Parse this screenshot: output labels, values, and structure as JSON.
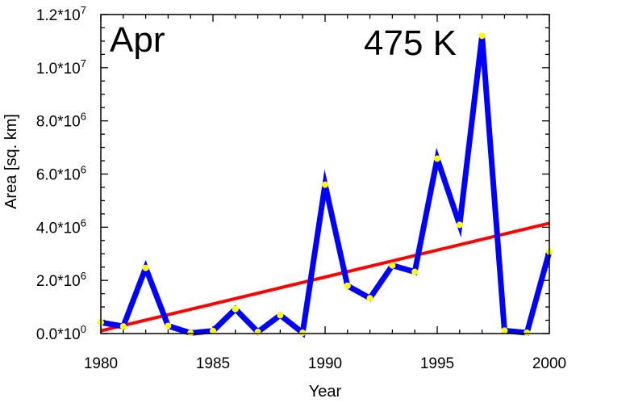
{
  "chart_data": {
    "type": "line",
    "panel_label": "Apr",
    "level_label": "475 K",
    "xlabel": "Year",
    "ylabel": "Area [sq. km]",
    "xlim": [
      1980,
      2000
    ],
    "ylim": [
      0,
      12000000
    ],
    "x_ticks": [
      "1980",
      "1985",
      "1990",
      "1995",
      "2000"
    ],
    "y_ticks": [
      {
        "mantissa": "0.0*10",
        "exp": "0"
      },
      {
        "mantissa": "2.0*10",
        "exp": "6"
      },
      {
        "mantissa": "4.0*10",
        "exp": "6"
      },
      {
        "mantissa": "6.0*10",
        "exp": "6"
      },
      {
        "mantissa": "8.0*10",
        "exp": "6"
      },
      {
        "mantissa": "1.0*10",
        "exp": "7"
      },
      {
        "mantissa": "1.2*10",
        "exp": "7"
      }
    ],
    "y_tick_values": [
      0,
      2000000,
      4000000,
      6000000,
      8000000,
      10000000,
      12000000
    ],
    "x_tick_values": [
      1980,
      1985,
      1990,
      1995,
      2000
    ],
    "series": [
      {
        "x": [
          1980,
          1981,
          1982,
          1983,
          1984,
          1985,
          1986,
          1987,
          1988,
          1989,
          1990,
          1991,
          1992,
          1993,
          1994,
          1995,
          1996,
          1997,
          1998,
          1999,
          2000
        ],
        "values": [
          420000,
          270000,
          2470000,
          290000,
          20000,
          100000,
          920000,
          60000,
          690000,
          30000,
          5600000,
          1800000,
          1330000,
          2560000,
          2320000,
          6580000,
          4090000,
          11200000,
          110000,
          30000,
          3080000
        ],
        "color": "#0000ff",
        "marker_color": "#ffff00"
      }
    ],
    "trend": {
      "x": [
        1980,
        2000
      ],
      "values": [
        100000,
        4150000
      ],
      "color": "#ff0000"
    },
    "grid": false
  }
}
